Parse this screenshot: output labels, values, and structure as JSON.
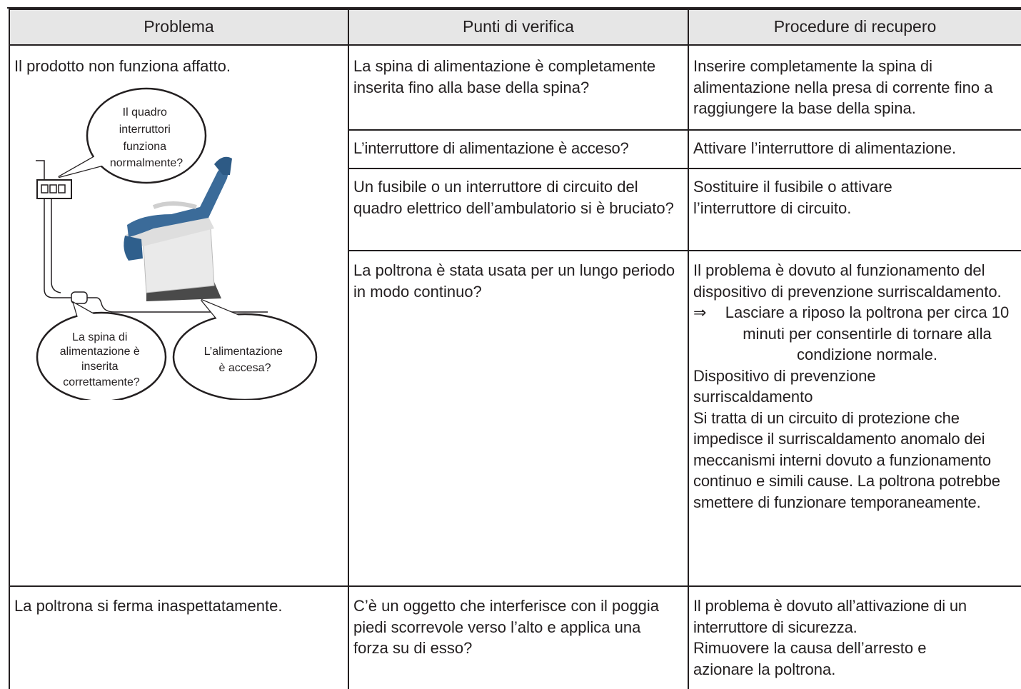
{
  "table": {
    "headers": [
      "Problema",
      "Punti di verifica",
      "Procedure di recupero"
    ],
    "rows": [
      {
        "problem": "Il prodotto non funziona affatto.",
        "checks": [
          {
            "question": "La spina di alimentazione è completamente inserita fino alla base della spina?",
            "remedy": "Inserire completamente la spina di alimentazione nella presa di corrente fino a raggiungere la base della spina."
          },
          {
            "question": "L’interruttore di alimentazione è acceso?",
            "remedy": "Attivare l’interruttore di alimentazione."
          },
          {
            "question": "Un fusibile o un interruttore di circuito del quadro elettrico dell’ambulatorio si è bruciato?",
            "remedy": "Sostituire il fusibile o attivare l’interruttore di circuito."
          },
          {
            "question": "La poltrona è stata usata per un lungo periodo in modo continuo?",
            "remedy": "Il problema è dovuto al funzionamento del dispositivo di prevenzione surriscaldamento.",
            "note": {
              "symbol": "⇒",
              "text": "Lasciare a riposo la poltrona per circa 10 minuti per consentirle di tornare alla condizione normale."
            },
            "heading": "Dispositivo di prevenzione surriscaldamento",
            "body": "Si tratta di un circuito di protezione che impedisce il surriscaldamento anomalo dei meccanismi interni dovuto a funzionamento continuo e simili cause. La poltrona potrebbe smettere di funzionare temporaneamente."
          }
        ]
      },
      {
        "problem": "La poltrona si ferma inaspettatamente.",
        "checks": [
          {
            "question": "C’è un oggetto che interferisce con il poggia piedi scorrevole verso l’alto e applica una forza su di esso?",
            "remedy": "Il problema è dovuto all’attivazione di un interruttore di sicurezza.",
            "action": "Rimuovere la causa dell’arresto e azionare la poltrona."
          }
        ]
      }
    ]
  },
  "illustration": {
    "callouts": [
      {
        "lines": [
          "Il quadro",
          "interruttori",
          "funziona",
          "normalmente?"
        ]
      },
      {
        "lines": [
          "La spina di",
          "alimentazione è",
          "inserita",
          "correttamente?"
        ]
      },
      {
        "lines": [
          "L’alimentazione",
          "è accesa?"
        ]
      }
    ]
  }
}
